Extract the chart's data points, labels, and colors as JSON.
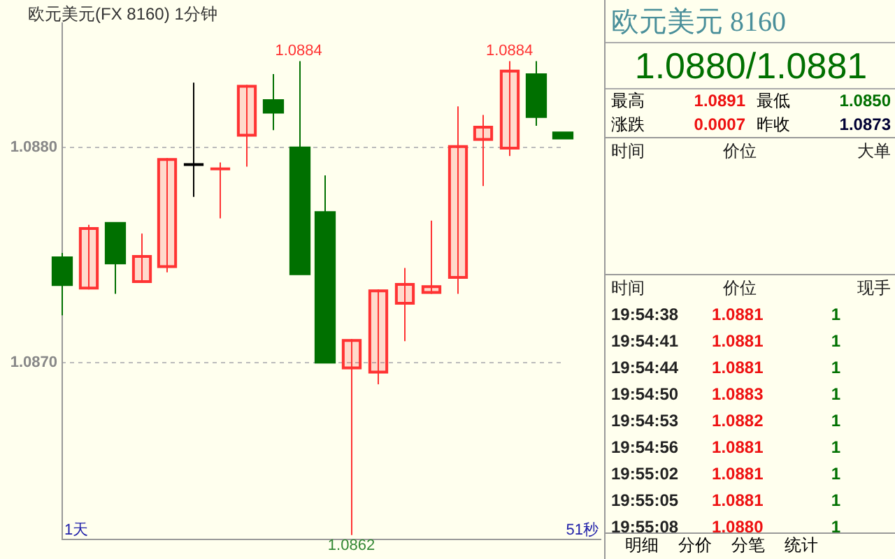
{
  "chart_data": {
    "type": "candlestick",
    "title": "欧元美元(FX 8160)  1分钟",
    "categories": [
      null,
      null,
      null,
      null,
      null,
      null,
      null,
      null,
      null,
      null,
      null,
      null,
      null,
      null,
      null,
      null,
      null,
      null,
      null,
      null
    ],
    "ohlc": [
      [
        1.08749,
        1.08751,
        1.08722,
        1.08736
      ],
      [
        1.08734,
        1.08764,
        1.08734,
        1.08763
      ],
      [
        1.08765,
        1.08765,
        1.08732,
        1.08746
      ],
      [
        1.08737,
        1.0876,
        1.08737,
        1.0875
      ],
      [
        1.08744,
        1.08795,
        1.08742,
        1.08795
      ],
      [
        1.08792,
        1.0883,
        1.08777,
        1.08792
      ],
      [
        1.0879,
        1.08793,
        1.08767,
        1.0879
      ],
      [
        1.08805,
        1.08829,
        1.08791,
        1.08829
      ],
      [
        1.08822,
        1.08834,
        1.08808,
        1.08816
      ],
      [
        1.088,
        1.0884,
        1.08741,
        1.08741
      ],
      [
        1.0877,
        1.08787,
        1.087,
        1.087
      ],
      [
        1.08697,
        1.08711,
        1.0862,
        1.08711
      ],
      [
        1.08695,
        1.08734,
        1.0869,
        1.08734
      ],
      [
        1.08727,
        1.08744,
        1.0871,
        1.08737
      ],
      [
        1.08732,
        1.08766,
        1.08732,
        1.08736
      ],
      [
        1.08739,
        1.08819,
        1.08732,
        1.08801
      ],
      [
        1.08803,
        1.08815,
        1.08782,
        1.0881
      ],
      [
        1.08799,
        1.0884,
        1.08796,
        1.08836
      ],
      [
        1.08834,
        1.0884,
        1.0881,
        1.08814
      ],
      [
        1.08807,
        1.08807,
        1.08804,
        1.08804
      ]
    ],
    "colors": [
      "#007000",
      "#ff3333",
      "#007000",
      "#ff3333",
      "#ff3333",
      "#000000",
      "#ff3333",
      "#ff3333",
      "#007000",
      "#007000",
      "#007000",
      "#ff3333",
      "#ff3333",
      "#ff3333",
      "#ff3333",
      "#ff3333",
      "#ff3333",
      "#ff3333",
      "#007000",
      "#007000"
    ],
    "ylim": [
      1.08618,
      1.08858
    ],
    "yticks": [
      {
        "value": 1.088,
        "label": "1.0880"
      },
      {
        "value": 1.087,
        "label": "1.0870"
      }
    ],
    "grid": "y",
    "tick_labels": "y",
    "legend": false,
    "annotations": [
      {
        "text": "1.0884",
        "y": 1.0884
      },
      {
        "text": "1.0884",
        "y": 1.0884
      },
      {
        "text": "1.0862",
        "y": 1.0862
      },
      "1天",
      "51秒",
      "欧元美元  8160",
      "1.0880/1.0881",
      "最高",
      "1.0891",
      "最低",
      "1.0850",
      "涨跌",
      "0.0007",
      "昨收",
      "1.0873",
      "时间",
      "价位",
      "大单",
      "时间",
      "价位",
      "现手",
      "19:54:38",
      "1.0881",
      "1",
      "19:54:41",
      "1.0881",
      "1",
      "19:54:44",
      "1.0881",
      "1",
      "19:54:50",
      "1.0883",
      "1",
      "19:54:53",
      "1.0882",
      "1",
      "19:54:56",
      "1.0881",
      "1",
      "19:55:02",
      "1.0881",
      "1",
      "19:55:05",
      "1.0881",
      "1",
      "19:55:08",
      "1.0880",
      "1",
      "明细",
      "分价",
      "分笔",
      "统计"
    ]
  }
}
